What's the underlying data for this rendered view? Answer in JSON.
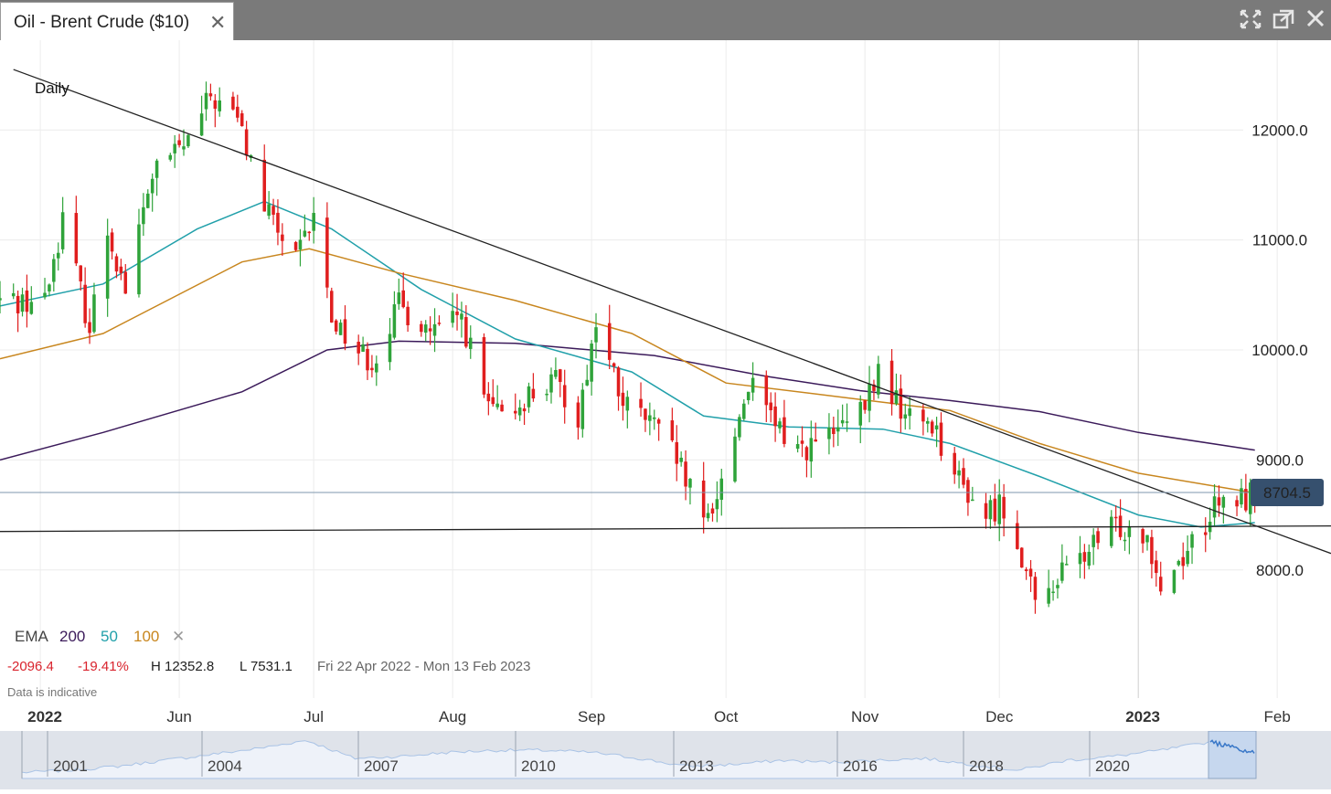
{
  "window": {
    "tab_title": "Oil - Brent Crude ($10)",
    "close_glyph": "✕",
    "buttons": [
      "fullscreen-icon",
      "popout-icon",
      "close-window-icon"
    ]
  },
  "chart_data": {
    "type": "candlestick",
    "interval_label": "Daily",
    "y_ticks": [
      "12000.0",
      "11000.0",
      "10000.0",
      "9000.0",
      "8000.0"
    ],
    "y_tick_values": [
      12000,
      11000,
      10000,
      9000,
      8000
    ],
    "ylim": [
      7500,
      12700
    ],
    "x_start": "2022-04-22",
    "x_end": "2023-02-13",
    "x_ticks": [
      {
        "date": "2022-05-01",
        "label": "2022",
        "bold": true
      },
      {
        "date": "2022-06-01",
        "label": "Jun"
      },
      {
        "date": "2022-07-01",
        "label": "Jul"
      },
      {
        "date": "2022-08-01",
        "label": "Aug"
      },
      {
        "date": "2022-09-01",
        "label": "Sep"
      },
      {
        "date": "2022-10-01",
        "label": "Oct"
      },
      {
        "date": "2022-11-01",
        "label": "Nov"
      },
      {
        "date": "2022-12-01",
        "label": "Dec"
      },
      {
        "date": "2023-01-01",
        "label": "2023",
        "bold": true
      },
      {
        "date": "2023-02-01",
        "label": "Feb"
      }
    ],
    "close_path": [
      [
        "2022-04-22",
        10450
      ],
      [
        "2022-05-02",
        10450
      ],
      [
        "2022-05-06",
        11200
      ],
      [
        "2022-05-12",
        10200
      ],
      [
        "2022-05-16",
        11100
      ],
      [
        "2022-05-20",
        10550
      ],
      [
        "2022-05-26",
        11600
      ],
      [
        "2022-06-03",
        11900
      ],
      [
        "2022-06-08",
        12300
      ],
      [
        "2022-06-14",
        12100
      ],
      [
        "2022-06-20",
        11300
      ],
      [
        "2022-06-27",
        10800
      ],
      [
        "2022-07-01",
        11200
      ],
      [
        "2022-07-05",
        10300
      ],
      [
        "2022-07-11",
        10000
      ],
      [
        "2022-07-14",
        9900
      ],
      [
        "2022-07-20",
        10400
      ],
      [
        "2022-07-28",
        10150
      ],
      [
        "2022-08-03",
        10300
      ],
      [
        "2022-08-08",
        9550
      ],
      [
        "2022-08-12",
        9350
      ],
      [
        "2022-08-18",
        9600
      ],
      [
        "2022-08-24",
        9700
      ],
      [
        "2022-08-29",
        9400
      ],
      [
        "2022-09-02",
        10250
      ],
      [
        "2022-09-08",
        9500
      ],
      [
        "2022-09-14",
        9350
      ],
      [
        "2022-09-20",
        9000
      ],
      [
        "2022-09-26",
        8400
      ],
      [
        "2022-09-30",
        8800
      ],
      [
        "2022-10-06",
        9700
      ],
      [
        "2022-10-12",
        9300
      ],
      [
        "2022-10-18",
        9100
      ],
      [
        "2022-10-24",
        9200
      ],
      [
        "2022-10-31",
        9400
      ],
      [
        "2022-11-04",
        9800
      ],
      [
        "2022-11-10",
        9400
      ],
      [
        "2022-11-16",
        9350
      ],
      [
        "2022-11-22",
        8800
      ],
      [
        "2022-11-28",
        8500
      ],
      [
        "2022-12-01",
        8600
      ],
      [
        "2022-12-05",
        8300
      ],
      [
        "2022-12-09",
        7650
      ],
      [
        "2022-12-13",
        7900
      ],
      [
        "2022-12-19",
        8100
      ],
      [
        "2022-12-27",
        8400
      ],
      [
        "2023-01-03",
        8350
      ],
      [
        "2023-01-06",
        7850
      ],
      [
        "2023-01-12",
        8200
      ],
      [
        "2023-01-18",
        8550
      ],
      [
        "2023-01-24",
        8650
      ],
      [
        "2023-01-27",
        8704.5
      ]
    ],
    "ema_lines": [
      {
        "period": "200",
        "color": "#3b1a5a",
        "points": [
          [
            "2022-04-22",
            9000
          ],
          [
            "2022-05-15",
            9250
          ],
          [
            "2022-06-15",
            9620
          ],
          [
            "2022-07-04",
            10000
          ],
          [
            "2022-07-20",
            10080
          ],
          [
            "2022-08-15",
            10060
          ],
          [
            "2022-09-15",
            9950
          ],
          [
            "2022-10-10",
            9760
          ],
          [
            "2022-10-31",
            9630
          ],
          [
            "2022-11-20",
            9540
          ],
          [
            "2022-12-10",
            9440
          ],
          [
            "2023-01-01",
            9250
          ],
          [
            "2023-01-27",
            9090
          ]
        ]
      },
      {
        "period": "50",
        "color": "#21a0aa",
        "points": [
          [
            "2022-04-22",
            10400
          ],
          [
            "2022-05-15",
            10600
          ],
          [
            "2022-06-05",
            11100
          ],
          [
            "2022-06-20",
            11350
          ],
          [
            "2022-07-05",
            11100
          ],
          [
            "2022-07-25",
            10550
          ],
          [
            "2022-08-15",
            10100
          ],
          [
            "2022-09-10",
            9800
          ],
          [
            "2022-09-26",
            9400
          ],
          [
            "2022-10-15",
            9300
          ],
          [
            "2022-11-05",
            9280
          ],
          [
            "2022-11-20",
            9150
          ],
          [
            "2022-12-10",
            8850
          ],
          [
            "2023-01-01",
            8500
          ],
          [
            "2023-01-15",
            8390
          ],
          [
            "2023-01-27",
            8430
          ]
        ]
      },
      {
        "period": "100",
        "color": "#c8861e",
        "points": [
          [
            "2022-04-22",
            9920
          ],
          [
            "2022-05-15",
            10150
          ],
          [
            "2022-06-15",
            10800
          ],
          [
            "2022-06-30",
            10920
          ],
          [
            "2022-07-20",
            10700
          ],
          [
            "2022-08-15",
            10450
          ],
          [
            "2022-09-10",
            10150
          ],
          [
            "2022-10-01",
            9700
          ],
          [
            "2022-10-31",
            9550
          ],
          [
            "2022-11-20",
            9450
          ],
          [
            "2022-12-10",
            9150
          ],
          [
            "2023-01-01",
            8880
          ],
          [
            "2023-01-27",
            8700
          ]
        ]
      }
    ],
    "trendlines": [
      {
        "name": "downtrend-line",
        "points": [
          [
            "2022-04-25",
            12550
          ],
          [
            "2023-02-13",
            8150
          ]
        ]
      },
      {
        "name": "support-line",
        "points": [
          [
            "2022-04-22",
            8350
          ],
          [
            "2023-02-13",
            8400
          ]
        ]
      }
    ],
    "reference_line": {
      "value": 8704.5,
      "label": "8704.5",
      "color": "#36506e"
    },
    "legend": {
      "ema_label": "EMA",
      "periods": [
        "200",
        "50",
        "100"
      ],
      "close_glyph": "✕"
    },
    "stats": {
      "change": "-2096.4",
      "change_pct": "-19.41%",
      "high": "H 12352.8",
      "low": "L 7531.1",
      "range": "Fri 22 Apr 2022 - Mon 13 Feb 2023"
    },
    "disclaimer": "Data is indicative",
    "navigator": {
      "years": [
        "2001",
        "2004",
        "2007",
        "2010",
        "2013",
        "2016",
        "2018",
        "2020"
      ],
      "profile": [
        0.15,
        0.2,
        0.3,
        0.45,
        0.6,
        0.75,
        0.95,
        0.5,
        0.55,
        0.65,
        0.7,
        0.7,
        0.65,
        0.5,
        0.3,
        0.35,
        0.45,
        0.4,
        0.45,
        0.5,
        0.35,
        0.2,
        0.45,
        0.55,
        0.7,
        0.9
      ]
    }
  },
  "colors": {
    "up": "#2fa33a",
    "down": "#e01e1e",
    "grid": "#ececec",
    "axis_text": "#222",
    "change_neg": "#d9232d"
  }
}
